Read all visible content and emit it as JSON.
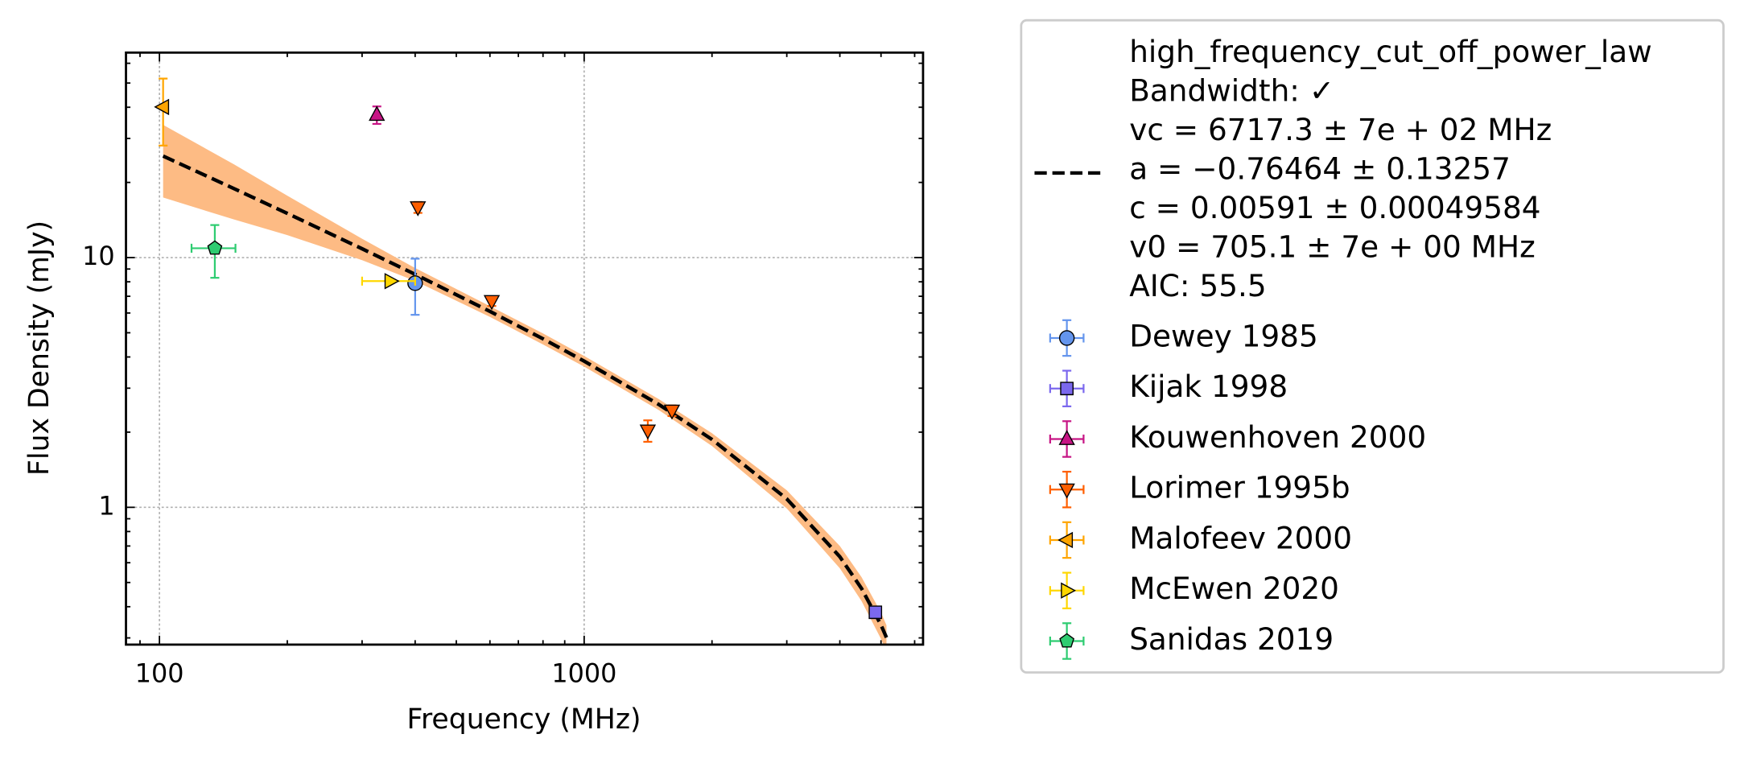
{
  "chart_data": {
    "type": "scatter",
    "xlabel": "Frequency (MHz)",
    "ylabel": "Flux Density (mJy)",
    "xscale": "log",
    "yscale": "log",
    "xlim": [
      83.4,
      6280
    ],
    "ylim": [
      0.282,
      66.2
    ],
    "xticks": [
      100,
      1000
    ],
    "yticks": [
      1,
      10
    ],
    "xminorticks": [
      90,
      200,
      300,
      400,
      500,
      600,
      700,
      800,
      900,
      2000,
      3000,
      4000,
      5000,
      6000
    ],
    "yminorticks": [
      0.3,
      0.4,
      0.5,
      0.6,
      0.7,
      0.8,
      0.9,
      2,
      3,
      4,
      5,
      6,
      7,
      8,
      9,
      20,
      30,
      40,
      50,
      60
    ],
    "grid": true,
    "legend": "outside right",
    "fit": {
      "label_lines": [
        "high_frequency_cut_off_power_law",
        "Bandwidth: ✓",
        "vc = 6717.3 ± 7e + 02 MHz",
        "a = −0.76464 ± 0.13257",
        "c = 0.00591 ± 0.00049584",
        "v0 = 705.1 ± 7e + 00 MHz",
        "AIC: 55.5"
      ],
      "color": "#000000",
      "band_color": "#fdbb84",
      "x": [
        102,
        150,
        200,
        300,
        400,
        600,
        800,
        1000,
        1500,
        2000,
        3000,
        4000,
        4500,
        5000,
        5150
      ],
      "y": [
        25.5,
        18.87,
        15.03,
        10.85,
        8.57,
        6.09,
        4.73,
        3.85,
        2.58,
        1.87,
        1.081,
        0.634,
        0.473,
        0.338,
        0.301
      ],
      "upper": [
        34,
        23.6,
        17.7,
        11.9,
        9.08,
        6.39,
        4.97,
        4.04,
        2.71,
        1.98,
        1.17,
        0.7,
        0.525,
        0.379,
        0.337
      ],
      "lower": [
        17.4,
        14.2,
        12.3,
        9.77,
        8.06,
        5.79,
        4.49,
        3.66,
        2.45,
        1.76,
        0.99,
        0.57,
        0.421,
        0.297,
        0.265
      ]
    },
    "series": [
      {
        "name": "Dewey 1985",
        "color": "#6495ed",
        "marker": "circle",
        "x": [
          400
        ],
        "values": [
          7.9
        ],
        "yerr": [
          2.0
        ]
      },
      {
        "name": "Kijak 1998",
        "color": "#7b68ee",
        "marker": "square",
        "x": [
          4850
        ],
        "values": [
          0.38
        ],
        "yerr": [
          0.02
        ]
      },
      {
        "name": "Kouwenhoven 2000",
        "color": "#c71585",
        "marker": "triangle-up",
        "x": [
          325
        ],
        "values": [
          37.3
        ],
        "yerr": [
          3.0
        ]
      },
      {
        "name": "Lorimer 1995b",
        "color": "#ff5f00",
        "marker": "triangle-down",
        "x": [
          406,
          606,
          1412,
          1610
        ],
        "values": [
          15.9,
          6.7,
          2.03,
          2.44
        ],
        "yerr": [
          0.8,
          0.3,
          0.2,
          0.12
        ]
      },
      {
        "name": "Malofeev 2000",
        "color": "#ffa500",
        "marker": "triangle-left",
        "x": [
          102
        ],
        "values": [
          40.1
        ],
        "yerr": [
          12
        ]
      },
      {
        "name": "McEwen 2020",
        "color": "#ffd700",
        "marker": "triangle-right",
        "x": [
          350
        ],
        "values": [
          8.05
        ],
        "xerr": [
          50
        ]
      },
      {
        "name": "Sanidas 2019",
        "color": "#2ecc71",
        "marker": "pentagon",
        "x": [
          135
        ],
        "values": [
          10.9
        ],
        "yerr": [
          2.6
        ],
        "xerr": [
          16
        ]
      }
    ]
  }
}
